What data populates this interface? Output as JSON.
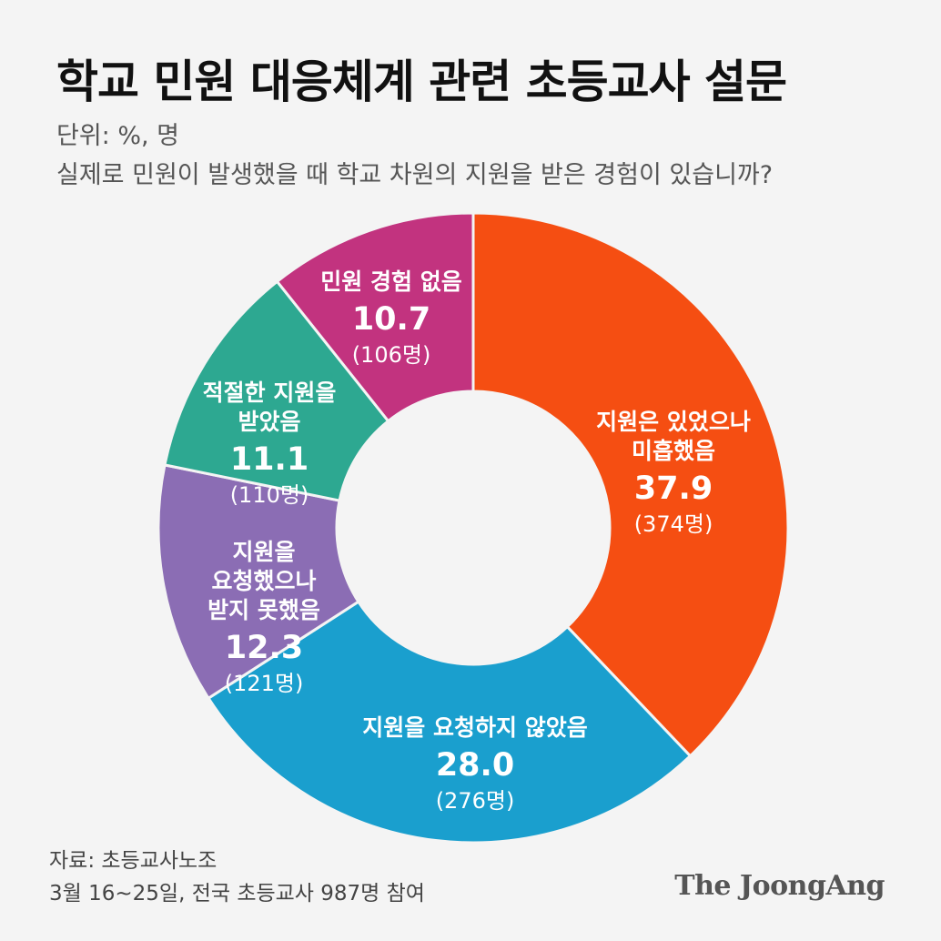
{
  "title": "학교 민원 대응체계 관련 초등교사 설문",
  "unit": "단위: %, 명",
  "question": "실제로 민원이 발생했을 때 학교 차원의 지원을 받은 경험이 있습니까?",
  "source_line1": "자료: 초등교사노조",
  "source_line2": "3월 16~25일, 전국 초등교사 987명 참여",
  "logo": "The JoongAng",
  "chart_data": {
    "type": "pie",
    "style": "donut",
    "slices": [
      {
        "label_lines": [
          "지원은 있었으나",
          "미흡했음"
        ],
        "value": 37.9,
        "value_text": "37.9",
        "count_text": "(374명)",
        "color": "#f54e12"
      },
      {
        "label_lines": [
          "지원을 요청하지 않았음"
        ],
        "value": 28.0,
        "value_text": "28.0",
        "count_text": "(276명)",
        "color": "#1a9fce"
      },
      {
        "label_lines": [
          "지원을",
          "요청했으나",
          "받지 못했음"
        ],
        "value": 12.3,
        "value_text": "12.3",
        "count_text": "(121명)",
        "color": "#8b6db4"
      },
      {
        "label_lines": [
          "적절한 지원을",
          "받았음"
        ],
        "value": 11.1,
        "value_text": "11.1",
        "count_text": "(110명)",
        "color": "#2da891"
      },
      {
        "label_lines": [
          "민원 경험 없음"
        ],
        "value": 10.7,
        "value_text": "10.7",
        "count_text": "(106명)",
        "color": "#c2337f"
      }
    ]
  }
}
